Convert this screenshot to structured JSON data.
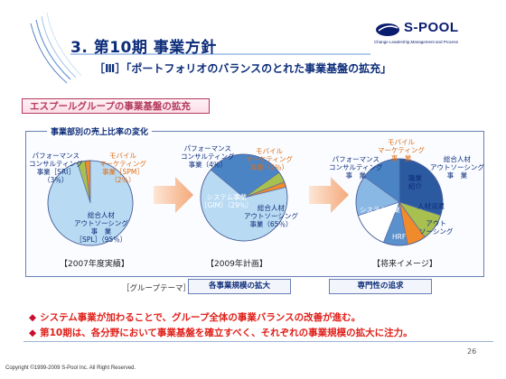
{
  "slide": {
    "title": "3. 第10期 事業方針",
    "subtitle": "［Ⅲ］「ポートフォリオのバランスのとれた事業基盤の拡充」",
    "section_label": "エスプールグループの事業基盤の拡充",
    "panel_label": "事業部別の売上比率の変化",
    "page_number": "26",
    "copyright": "Copyright ©1999-2009 S-Pool Inc. All Right Reserved."
  },
  "logo": {
    "name": "S-POOL",
    "tagline": "Change Leadership,Management and Process"
  },
  "charts_text": {
    "chart1": {
      "perf": [
        "パフォーマンス",
        "コンサルティング",
        "事業［SRI］",
        "（3％）"
      ],
      "mobile": [
        "モバイル",
        "マーケティング",
        "事業［SPM］",
        "（2％）"
      ],
      "hr": [
        "総合人材",
        "アウトソーシング",
        "事　業",
        "［SPL］（95％）"
      ],
      "caption": "【2007年度実績】"
    },
    "chart2": {
      "perf": [
        "パフォーマンス",
        "コンサルティング",
        "事業（4％）"
      ],
      "mobile": [
        "モバイル",
        "マーケティング",
        "事業（2％）"
      ],
      "system": [
        "システム事業",
        "［GIM］（29％）"
      ],
      "hr": [
        "総合人材",
        "アウトソーシング",
        "事業（65％）"
      ],
      "caption": "【2009年計画】"
    },
    "chart3": {
      "perf": [
        "パフォーマンス",
        "コンサルティング",
        "事　業"
      ],
      "mobile": [
        "モバイル",
        "マーケティング",
        "事　業"
      ],
      "hr": [
        "総合人材",
        "アウトソーシング",
        "事　業"
      ],
      "system": "システム事業",
      "shokai": [
        "職業",
        "紹介"
      ],
      "haken": "人材派遣",
      "outsourcing": [
        "アウト",
        "ソーシング"
      ],
      "hrf": "HRF",
      "caption": "【将来イメージ】"
    }
  },
  "chart_data": [
    {
      "type": "pie",
      "title": "【2007年度実績】",
      "slices": [
        {
          "label": "総合人材アウトソーシング事業［SPL］",
          "value": 95,
          "color": "#b8daf2"
        },
        {
          "label": "パフォーマンスコンサルティング事業［SRI］",
          "value": 3,
          "color": "#a8c050"
        },
        {
          "label": "モバイルマーケティング事業［SPM］",
          "value": 2,
          "color": "#f08a2a"
        }
      ]
    },
    {
      "type": "pie",
      "title": "【2009年計画】",
      "slices": [
        {
          "label": "総合人材アウトソーシング事業",
          "value": 65,
          "color": "#b8daf2"
        },
        {
          "label": "システム事業［GIM］",
          "value": 29,
          "color": "#4a84c4"
        },
        {
          "label": "パフォーマンスコンサルティング事業",
          "value": 4,
          "color": "#a8c050"
        },
        {
          "label": "モバイルマーケティング事業",
          "value": 2,
          "color": "#f08a2a"
        }
      ]
    },
    {
      "type": "pie",
      "title": "【将来イメージ】",
      "slices": [
        {
          "label": "システム事業",
          "color": "#2c5aa0"
        },
        {
          "label": "パフォーマンスコンサルティング事業",
          "color": "#a8c050"
        },
        {
          "label": "モバイルマーケティング事業",
          "color": "#f08a2a"
        },
        {
          "label": "職業紹介",
          "color": "#5a90cc"
        },
        {
          "label": "人材派遣",
          "color": "#ffffff"
        },
        {
          "label": "アウトソーシング",
          "color": "#8ab8e4"
        },
        {
          "label": "HRF",
          "color": "#4a84c4"
        }
      ]
    }
  ],
  "themes": {
    "label": "［グループテーマ］",
    "box1": "各事業規模の拡大",
    "box2": "専門性の追求"
  },
  "bullets": [
    "システム事業が加わることで、グループ全体の事業バランスの改善が進む。",
    "第10期は、各分野において事業基盤を確立すべく、それぞれの事業規模の拡大に注力。"
  ],
  "bullet_mark": "◆",
  "colors": {
    "navy": "#0c2c7a",
    "accent_red": "#e0201a",
    "section_pink": "#b33a5e",
    "orange": "#f08a2a",
    "green": "#a8c050",
    "light_blue": "#b8daf2",
    "mid_blue": "#4a84c4"
  },
  "icons": [
    "logo-mark-icon",
    "right-arrow-icon",
    "diamond-bullet-icon"
  ]
}
